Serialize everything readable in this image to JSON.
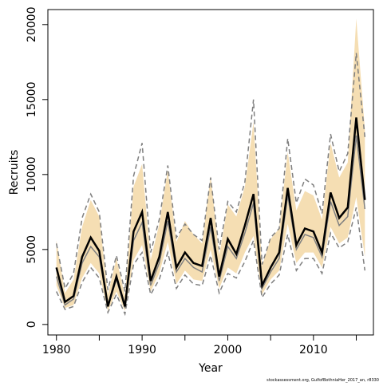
{
  "chart_data": {
    "type": "line",
    "title": "",
    "xlabel": "Year",
    "ylabel": "Recruits",
    "xlim": [
      1979,
      2017
    ],
    "ylim": [
      -700,
      21000
    ],
    "x_ticks": [
      1980,
      1985,
      1990,
      1995,
      2000,
      2005,
      2010,
      2015
    ],
    "x_tick_labels": [
      "1980",
      "1990",
      "2000",
      "2010"
    ],
    "y_ticks": [
      0,
      5000,
      10000,
      15000,
      20000
    ],
    "y_tick_labels": [
      "0",
      "5000",
      "10000",
      "15000",
      "20000"
    ],
    "grid": false,
    "legend": "none",
    "colors": {
      "band": "#f5deb3",
      "estimate": "#000000",
      "central_line": "#808080",
      "dashed_bounds": "#7f7f7f"
    },
    "x": [
      1980,
      1981,
      1982,
      1983,
      1984,
      1985,
      1986,
      1987,
      1988,
      1989,
      1990,
      1991,
      1992,
      1993,
      1994,
      1995,
      1996,
      1997,
      1998,
      1999,
      2000,
      2001,
      2002,
      2003,
      2004,
      2005,
      2006,
      2007,
      2008,
      2009,
      2010,
      2011,
      2012,
      2013,
      2014,
      2015,
      2016
    ],
    "series": [
      {
        "role": "estimate",
        "values": [
          3800,
          1500,
          1900,
          4500,
          5800,
          4900,
          1200,
          3200,
          1200,
          6200,
          7500,
          2900,
          4500,
          7500,
          3800,
          4800,
          4100,
          3900,
          7100,
          3200,
          5700,
          4700,
          6600,
          8700,
          2600,
          3800,
          4800,
          9100,
          5300,
          6400,
          6200,
          4800,
          8800,
          7100,
          7800,
          13800,
          8300
        ]
      },
      {
        "role": "central",
        "values": [
          3200,
          1300,
          1700,
          4100,
          5200,
          4500,
          1200,
          3000,
          1100,
          5600,
          6800,
          2600,
          4100,
          6900,
          3500,
          4400,
          3800,
          3500,
          6500,
          2900,
          5200,
          4400,
          6100,
          8100,
          2400,
          3500,
          4400,
          8600,
          5000,
          6000,
          5800,
          4500,
          8200,
          6600,
          7200,
          12600,
          7700
        ]
      },
      {
        "role": "upper-dashed",
        "values": [
          5400,
          2400,
          3400,
          7100,
          8700,
          7500,
          2300,
          4600,
          2200,
          9900,
          12100,
          4800,
          7000,
          10600,
          5800,
          6700,
          6000,
          5600,
          9800,
          5000,
          8200,
          7500,
          9500,
          15000,
          4000,
          5800,
          6400,
          12400,
          8100,
          9700,
          9300,
          7400,
          12700,
          10200,
          11400,
          18100,
          12500
        ]
      },
      {
        "role": "lower-dashed",
        "values": [
          2200,
          1000,
          1200,
          2800,
          3800,
          3100,
          800,
          2000,
          700,
          4000,
          4800,
          2000,
          3000,
          4800,
          2400,
          3300,
          2700,
          2600,
          4600,
          2100,
          3400,
          3100,
          4200,
          5600,
          1800,
          2700,
          3300,
          6000,
          3600,
          4400,
          4400,
          3400,
          6100,
          5100,
          5500,
          7800,
          3600
        ]
      },
      {
        "role": "band-upper",
        "values": [
          5600,
          2100,
          3000,
          6500,
          8300,
          7200,
          2000,
          4400,
          1900,
          9200,
          10700,
          4300,
          6700,
          10300,
          5500,
          6900,
          6000,
          5400,
          9900,
          4600,
          8000,
          7200,
          9200,
          13500,
          3900,
          5700,
          6400,
          11500,
          7600,
          8900,
          8600,
          7000,
          12100,
          9800,
          10800,
          20400,
          13000
        ]
      },
      {
        "role": "band-lower",
        "values": [
          2600,
          1100,
          1300,
          3100,
          4100,
          3400,
          900,
          2200,
          900,
          4300,
          5300,
          2200,
          3400,
          5500,
          2700,
          3600,
          3000,
          2900,
          5000,
          2400,
          3800,
          3400,
          4800,
          5900,
          2000,
          3000,
          3600,
          6700,
          4100,
          4800,
          4800,
          3800,
          6500,
          5400,
          5800,
          8500,
          4500
        ]
      }
    ],
    "credit": "stockassessment.org, GulfofBothniaHer_2017_an, r8330"
  }
}
